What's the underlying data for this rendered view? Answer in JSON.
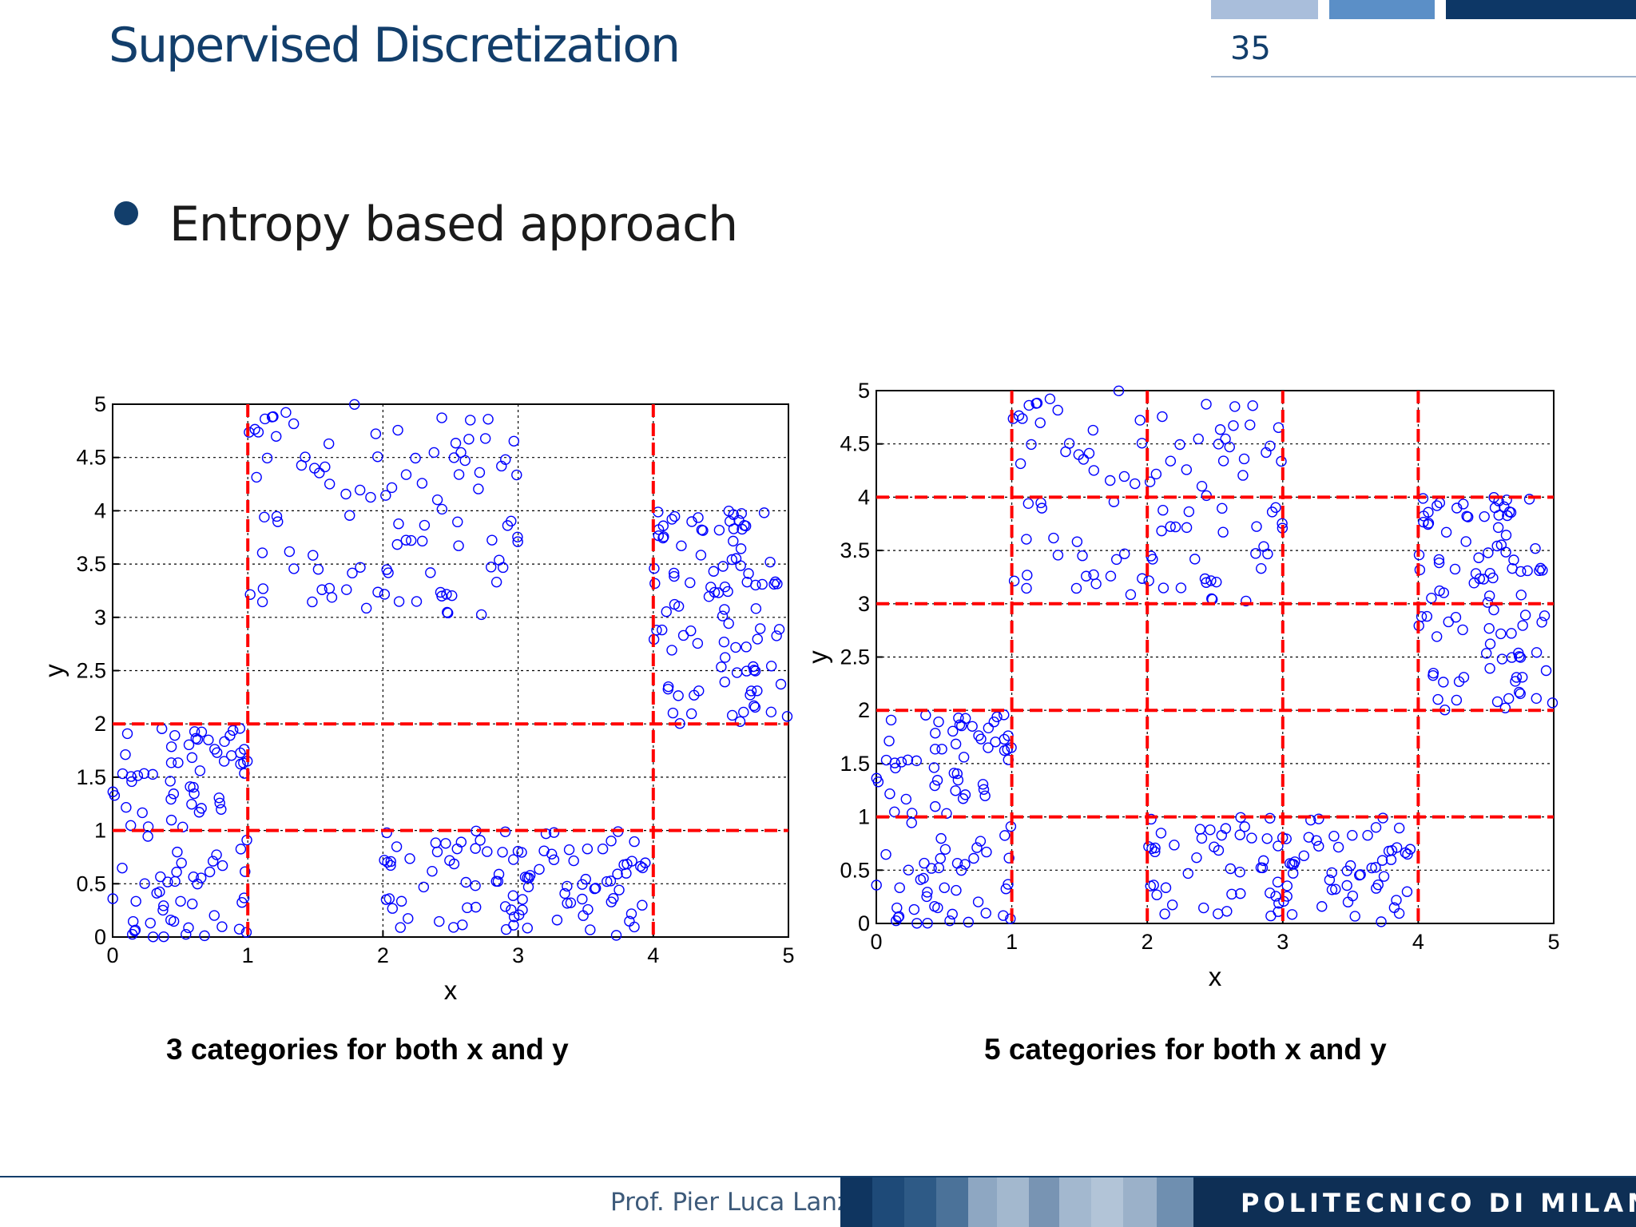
{
  "header": {
    "title": "Supervised Discretization",
    "page_number": "35",
    "accent_colors": [
      "#a9bedb",
      "#5b8fc7",
      "#0d3766"
    ]
  },
  "bullets": [
    {
      "text": "Entropy based approach"
    }
  ],
  "footer": {
    "author": "Prof. Pier Luca Lanzi",
    "institution": "POLITECNICO DI MILANO"
  },
  "chart_data": [
    {
      "type": "scatter",
      "title": "",
      "xlabel": "x",
      "ylabel": "y",
      "xlim": [
        0,
        5
      ],
      "ylim": [
        0,
        5
      ],
      "xticks": [
        "0",
        "1",
        "2",
        "3",
        "4",
        "5"
      ],
      "yticks": [
        "0",
        "0.5",
        "1",
        "1.5",
        "2",
        "2.5",
        "3",
        "3.5",
        "4",
        "4.5",
        "5"
      ],
      "grid": true,
      "marker": "open-circle",
      "marker_color": "#0000ff",
      "split_color": "#ff0000",
      "x_splits": [
        1,
        4
      ],
      "y_splits": [
        1,
        2
      ],
      "caption": "3 categories for both x and y",
      "clusters": [
        {
          "x_range": [
            0,
            1
          ],
          "y_range": [
            0,
            2
          ],
          "count": 100
        },
        {
          "x_range": [
            1,
            3
          ],
          "y_range": [
            3,
            5
          ],
          "count": 100
        },
        {
          "x_range": [
            2,
            4
          ],
          "y_range": [
            0,
            1
          ],
          "count": 100
        },
        {
          "x_range": [
            4,
            5
          ],
          "y_range": [
            2,
            4
          ],
          "count": 100
        }
      ]
    },
    {
      "type": "scatter",
      "title": "",
      "xlabel": "x",
      "ylabel": "y",
      "xlim": [
        0,
        5
      ],
      "ylim": [
        0,
        5
      ],
      "xticks": [
        "0",
        "1",
        "2",
        "3",
        "4",
        "5"
      ],
      "yticks": [
        "0",
        "0.5",
        "1",
        "1.5",
        "2",
        "2.5",
        "3",
        "3.5",
        "4",
        "4.5",
        "5"
      ],
      "grid": true,
      "marker": "open-circle",
      "marker_color": "#0000ff",
      "split_color": "#ff0000",
      "x_splits": [
        1,
        2,
        3,
        4
      ],
      "y_splits": [
        1,
        2,
        3,
        4
      ],
      "caption": "5 categories for both x and y",
      "clusters": [
        {
          "x_range": [
            0,
            1
          ],
          "y_range": [
            0,
            2
          ],
          "count": 100
        },
        {
          "x_range": [
            1,
            3
          ],
          "y_range": [
            3,
            5
          ],
          "count": 100
        },
        {
          "x_range": [
            2,
            4
          ],
          "y_range": [
            0,
            1
          ],
          "count": 100
        },
        {
          "x_range": [
            4,
            5
          ],
          "y_range": [
            2,
            4
          ],
          "count": 100
        }
      ]
    }
  ]
}
